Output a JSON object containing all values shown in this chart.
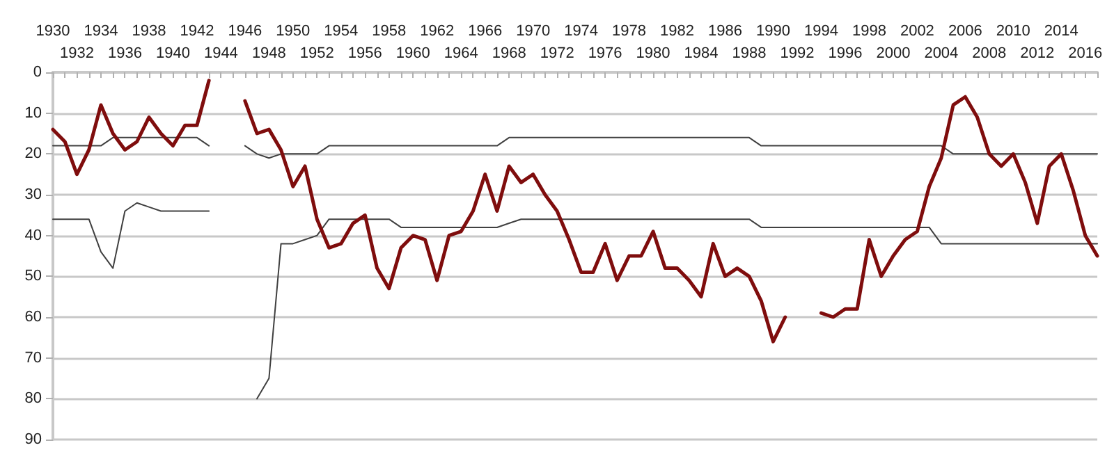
{
  "chart_data": {
    "type": "line",
    "categories": [
      "1930",
      null,
      "1932",
      null,
      "1934",
      null,
      "1936",
      null,
      "1938",
      null,
      "1940",
      null,
      "1942",
      null,
      "1944",
      null,
      "1946",
      null,
      "1948",
      null,
      "1950",
      null,
      "1952",
      null,
      "1954",
      null,
      "1956",
      null,
      "1958",
      null,
      "1960",
      null,
      "1962",
      null,
      "1964",
      null,
      "1966",
      null,
      "1968",
      null,
      "1970",
      null,
      "1972",
      null,
      "1974",
      null,
      "1976",
      null,
      "1978",
      null,
      "1980",
      null,
      "1982",
      null,
      "1984",
      null,
      "1986",
      null,
      "1988",
      null,
      "1990",
      null,
      "1992",
      null,
      "1994",
      null,
      "1996",
      null,
      "1998",
      null,
      "2000",
      null,
      "2002",
      null,
      "2004",
      null,
      "2006",
      null,
      "2008",
      null,
      "2010",
      null,
      "2012",
      null,
      "2014",
      null,
      "2016",
      null
    ],
    "series": [
      {
        "color": "#404040",
        "values": [
          18,
          18,
          18,
          18,
          18,
          16,
          16,
          16,
          16,
          16,
          16,
          16,
          16,
          18,
          null,
          null,
          18,
          20,
          21,
          20,
          20,
          20,
          20,
          18,
          18,
          18,
          18,
          18,
          18,
          18,
          18,
          18,
          18,
          18,
          18,
          18,
          18,
          18,
          16,
          16,
          16,
          16,
          16,
          16,
          16,
          16,
          16,
          16,
          16,
          16,
          16,
          16,
          16,
          16,
          16,
          16,
          16,
          16,
          16,
          18,
          18,
          18,
          18,
          18,
          18,
          18,
          18,
          18,
          18,
          18,
          18,
          18,
          18,
          18,
          18,
          20,
          20,
          20,
          20,
          20,
          20,
          20,
          20,
          20,
          20,
          20,
          20,
          20
        ]
      },
      {
        "color": "#404040",
        "values": [
          36,
          36,
          36,
          36,
          44,
          48,
          34,
          32,
          33,
          34,
          34,
          34,
          34,
          34,
          null,
          null,
          null,
          80,
          75,
          42,
          42,
          41,
          40,
          36,
          36,
          36,
          36,
          36,
          36,
          38,
          38,
          38,
          38,
          38,
          38,
          38,
          38,
          38,
          37,
          36,
          36,
          36,
          36,
          36,
          36,
          36,
          36,
          36,
          36,
          36,
          36,
          36,
          36,
          36,
          36,
          36,
          36,
          36,
          36,
          38,
          38,
          38,
          38,
          38,
          38,
          38,
          38,
          38,
          38,
          38,
          38,
          38,
          38,
          38,
          42,
          42,
          42,
          42,
          42,
          42,
          42,
          42,
          42,
          42,
          42,
          42,
          42,
          42
        ]
      },
      {
        "color": "#7f0d0d",
        "values": [
          14,
          17,
          25,
          19,
          8,
          15,
          19,
          17,
          11,
          15,
          18,
          13,
          13,
          2,
          null,
          null,
          7,
          15,
          14,
          19,
          28,
          23,
          36,
          43,
          42,
          37,
          35,
          48,
          53,
          43,
          40,
          41,
          51,
          40,
          39,
          34,
          25,
          34,
          23,
          27,
          25,
          30,
          34,
          41,
          49,
          49,
          42,
          51,
          45,
          45,
          39,
          48,
          48,
          51,
          55,
          42,
          50,
          48,
          50,
          56,
          66,
          60,
          null,
          null,
          59,
          60,
          58,
          58,
          41,
          50,
          45,
          41,
          39,
          28,
          21,
          8,
          6,
          11,
          20,
          23,
          20,
          27,
          37,
          23,
          20,
          29,
          40,
          45
        ]
      }
    ],
    "ylim": [
      90,
      0
    ],
    "yticks": [
      0,
      10,
      20,
      30,
      40,
      50,
      60,
      70,
      80,
      90
    ],
    "grid": "y",
    "marker": "none",
    "line_style": "solid"
  }
}
